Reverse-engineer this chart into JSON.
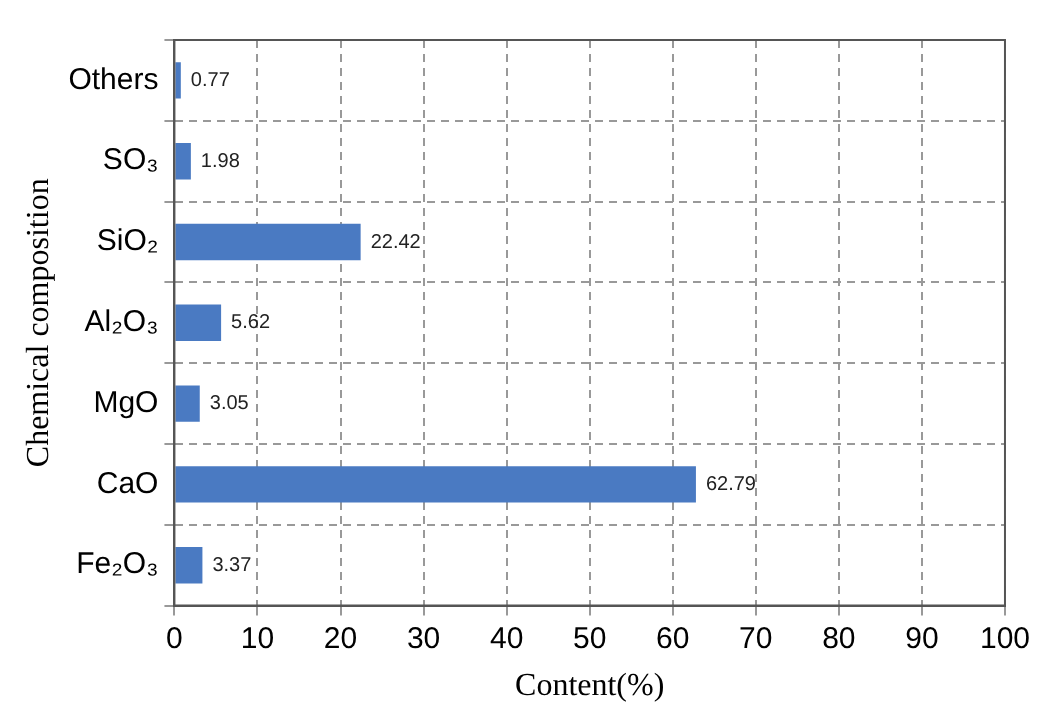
{
  "chart_data": {
    "type": "bar",
    "orientation": "horizontal",
    "xlabel": "Content(%)",
    "ylabel": "Chemical composition",
    "categories": [
      "Others",
      "SO₃",
      "SiO₂",
      "Al₂O₃",
      "MgO",
      "CaO",
      "Fe₂O₃"
    ],
    "values": [
      0.77,
      1.98,
      22.42,
      5.62,
      3.05,
      62.79,
      3.37
    ],
    "color": "#4a7ac2",
    "xlim": [
      0,
      100
    ],
    "xticks": [
      0,
      10,
      20,
      30,
      40,
      50,
      60,
      70,
      80,
      90,
      100
    ],
    "grid": true,
    "data_labels": true,
    "legend": false
  }
}
